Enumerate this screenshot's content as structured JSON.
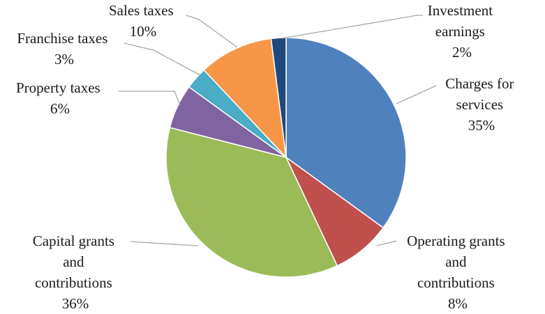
{
  "chart_data": {
    "type": "pie",
    "title": "",
    "legend": "none",
    "slices": [
      {
        "key": "charges",
        "name": "Charges for services",
        "value": 35,
        "label": "35%",
        "color": "#4F81BD"
      },
      {
        "key": "operating",
        "name": "Operating grants and contributions",
        "value": 8,
        "label": "8%",
        "color": "#C0504D"
      },
      {
        "key": "capital",
        "name": "Capital grants and contributions",
        "value": 36,
        "label": "36%",
        "color": "#9BBB59"
      },
      {
        "key": "property",
        "name": "Property taxes",
        "value": 6,
        "label": "6%",
        "color": "#8064A2"
      },
      {
        "key": "franchise",
        "name": "Franchise taxes",
        "value": 3,
        "label": "3%",
        "color": "#4BACC6"
      },
      {
        "key": "sales",
        "name": "Sales taxes",
        "value": 10,
        "label": "10%",
        "color": "#F79646"
      },
      {
        "key": "investment",
        "name": "Investment earnings",
        "value": 2,
        "label": "2%",
        "color": "#1F497D"
      }
    ]
  },
  "labels": {
    "charges": {
      "lines": [
        "Charges for",
        "services"
      ],
      "pct": "35%"
    },
    "operating": {
      "lines": [
        "Operating grants",
        "and",
        "contributions"
      ],
      "pct": "8%"
    },
    "capital": {
      "lines": [
        "Capital grants",
        "and",
        "contributions"
      ],
      "pct": "36%"
    },
    "property": {
      "lines": [
        "Property taxes"
      ],
      "pct": "6%"
    },
    "franchise": {
      "lines": [
        "Franchise taxes"
      ],
      "pct": "3%"
    },
    "sales": {
      "lines": [
        "Sales taxes"
      ],
      "pct": "10%"
    },
    "investment": {
      "lines": [
        "Investment",
        "earnings"
      ],
      "pct": "2%"
    }
  }
}
